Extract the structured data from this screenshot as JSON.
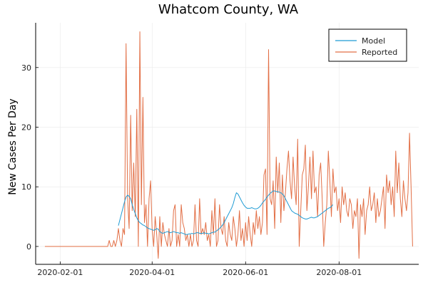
{
  "chart_data": {
    "type": "line",
    "title": "Whatcom County, WA",
    "xlabel": "",
    "ylabel": "New Cases Per Day",
    "x_start": "2020-01-22",
    "x_end": "2020-09-16",
    "xlim": [
      "2020-01-16",
      "2020-09-22"
    ],
    "ylim": [
      -3,
      37.5
    ],
    "x_ticks": [
      "2020-02-01",
      "2020-04-01",
      "2020-06-01",
      "2020-08-01"
    ],
    "y_ticks": [
      0,
      10,
      20,
      30
    ],
    "grid": true,
    "legend_position": "top-right",
    "series": [
      {
        "name": "Model",
        "color": "#1f9bd4",
        "x_start": "2020-03-10",
        "values": [
          3.5,
          4.5,
          5.5,
          6.5,
          7.5,
          8.3,
          8.6,
          8.4,
          8.0,
          7.0,
          6.2,
          5.5,
          4.8,
          4.3,
          4.0,
          3.8,
          3.6,
          3.5,
          3.3,
          3.1,
          3.0,
          2.9,
          2.8,
          2.7,
          2.8,
          3.0,
          2.9,
          2.5,
          2.3,
          2.2,
          2.3,
          2.4,
          2.5,
          2.4,
          2.3,
          2.4,
          2.5,
          2.4,
          2.3,
          2.3,
          2.2,
          2.3,
          2.2,
          2.1,
          2.0,
          2.0,
          2.1,
          2.1,
          2.2,
          2.1,
          2.2,
          2.3,
          2.3,
          2.2,
          2.2,
          2.2,
          2.3,
          2.2,
          2.2,
          2.1,
          2.2,
          2.3,
          2.4,
          2.4,
          2.6,
          2.8,
          3.0,
          3.3,
          3.6,
          4.0,
          4.5,
          5.0,
          5.5,
          6.0,
          6.5,
          7.2,
          8.2,
          9.0,
          8.8,
          8.3,
          7.8,
          7.3,
          6.9,
          6.6,
          6.4,
          6.4,
          6.4,
          6.5,
          6.4,
          6.3,
          6.3,
          6.4,
          6.6,
          6.9,
          7.3,
          7.6,
          7.9,
          8.3,
          8.6,
          8.9,
          9.1,
          9.3,
          9.3,
          9.2,
          9.2,
          9.1,
          9.0,
          8.8,
          8.5,
          8.0,
          7.5,
          7.0,
          6.5,
          6.0,
          5.8,
          5.6,
          5.5,
          5.4,
          5.2,
          5.0,
          4.8,
          4.7,
          4.6,
          4.6,
          4.7,
          4.8,
          4.9,
          4.8,
          4.8,
          4.9,
          5.0,
          5.2,
          5.4,
          5.6,
          5.8,
          6.0,
          6.2,
          6.4,
          6.5,
          6.7,
          7.0
        ]
      },
      {
        "name": "Reported",
        "color": "#e26f46",
        "x_start": "2020-01-22",
        "values": [
          0,
          0,
          0,
          0,
          0,
          0,
          0,
          0,
          0,
          0,
          0,
          0,
          0,
          0,
          0,
          0,
          0,
          0,
          0,
          0,
          0,
          0,
          0,
          0,
          0,
          0,
          0,
          0,
          0,
          0,
          0,
          0,
          0,
          0,
          0,
          0,
          0,
          0,
          0,
          0,
          0,
          0,
          1,
          0,
          0,
          1,
          0,
          1,
          3,
          1,
          0,
          3,
          2,
          34,
          8,
          3,
          22,
          6,
          14,
          5,
          23,
          0,
          36,
          7,
          25,
          4,
          7,
          0,
          8,
          11,
          3,
          0,
          5,
          2,
          -2,
          5,
          0,
          4,
          2,
          1,
          0,
          3,
          0,
          1,
          6,
          7,
          0,
          2,
          0,
          7,
          4,
          3,
          1,
          2,
          0,
          2,
          0,
          1,
          7,
          1,
          0,
          8,
          2,
          3,
          2,
          4,
          1,
          2,
          0,
          6,
          2,
          8,
          0,
          1,
          7,
          3,
          2,
          5,
          1,
          0,
          4,
          2,
          1,
          5,
          3,
          0,
          2,
          6,
          1,
          3,
          0,
          4,
          1,
          5,
          2,
          0,
          4,
          2,
          6,
          3,
          5,
          2,
          4,
          12,
          13,
          2,
          33,
          8,
          7,
          11,
          3,
          15,
          9,
          14,
          4,
          12,
          6,
          9,
          13,
          16,
          11,
          8,
          15,
          10,
          7,
          18,
          0,
          6,
          12,
          13,
          17,
          6,
          10,
          15,
          8,
          16,
          9,
          10,
          5,
          12,
          14,
          8,
          0,
          4,
          7,
          16,
          11,
          5,
          13,
          9,
          10,
          6,
          8,
          4,
          10,
          7,
          9,
          6,
          5,
          8,
          7,
          3,
          6,
          5,
          8,
          -2,
          7,
          5,
          8,
          2,
          6,
          7,
          10,
          6,
          7,
          9,
          4,
          8,
          5,
          6,
          8,
          10,
          3,
          12,
          9,
          11,
          7,
          10,
          5,
          16,
          9,
          14,
          8,
          5,
          11,
          8,
          6,
          9,
          19,
          10,
          0
        ]
      }
    ]
  }
}
